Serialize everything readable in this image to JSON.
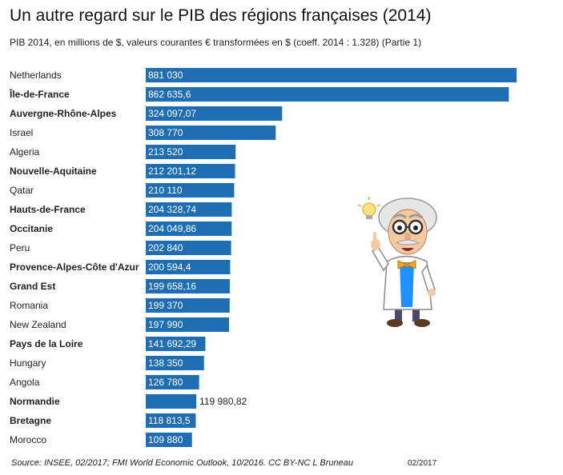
{
  "header": {
    "title": "Un autre regard sur le PIB des régions françaises (2014)",
    "subtitle": "PIB 2014, en millions de $, valeurs courantes € transformées en $ (coeff. 2014 : 1.328) (Partie 1)"
  },
  "footer": {
    "source": "Source: INSEE, 02/2017; FMI World Economic Outlook, 10/2016. CC BY-NC L Bruneau",
    "date": "02/2017"
  },
  "chart_data": {
    "type": "bar",
    "orientation": "horizontal",
    "bar_color": "#1f6eb4",
    "categories": [
      "Netherlands",
      "Île-de-France",
      "Auvergne-Rhône-Alpes",
      "Israel",
      "Algeria",
      "Nouvelle-Aquitaine",
      "Qatar",
      "Hauts-de-France",
      "Occitanie",
      "Peru",
      "Provence-Alpes-Côte d'Azur",
      "Grand Est",
      "Romania",
      "New Zealand",
      "Pays de la Loire",
      "Hungary",
      "Angola",
      "Normandie",
      "Bretagne",
      "Morocco"
    ],
    "values": [
      881030,
      862635.6,
      324097.07,
      308770,
      213520,
      212201.12,
      210110,
      204328.74,
      204049.86,
      202840,
      200594.4,
      199658.16,
      199370,
      197990,
      141692.29,
      138350,
      126780,
      119980.82,
      118813.5,
      109880
    ],
    "value_labels": [
      "881 030",
      "862 635,6",
      "324 097,07",
      "308 770",
      "213 520",
      "212 201,12",
      "210 110",
      "204 328,74",
      "204 049,86",
      "202 840",
      "200 594,4",
      "199 658,16",
      "199 370",
      "197 990",
      "141 692,29",
      "138 350",
      "126 780",
      "119 980,82",
      "118 813,5",
      "109 880"
    ],
    "bold_categories": [
      "Île-de-France",
      "Auvergne-Rhône-Alpes",
      "Nouvelle-Aquitaine",
      "Hauts-de-France",
      "Occitanie",
      "Provence-Alpes-Côte d'Azur",
      "Grand Est",
      "Pays de la Loire",
      "Normandie",
      "Bretagne"
    ],
    "xlim": [
      0,
      881030
    ],
    "grid": false,
    "legend": "none"
  },
  "illustration": {
    "icon": "professor-mascot-icon",
    "colors": {
      "coat": "#ffffff",
      "shirt": "#1e90ff",
      "bowtie": "#f5a623",
      "hair": "#dcdcdc",
      "skin": "#f6c9a0",
      "bulb": "#ffe27a"
    }
  }
}
